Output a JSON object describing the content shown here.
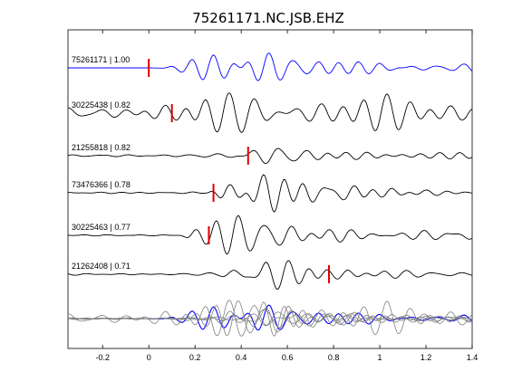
{
  "chart_data": {
    "type": "line",
    "title": "75261171.NC.JSB.EHZ",
    "xlabel": "",
    "ylabel": "",
    "xlim": [
      -0.35,
      1.4
    ],
    "xticks": [
      "-0.2",
      "0",
      "0.2",
      "0.4",
      "0.6",
      "0.8",
      "1",
      "1.2",
      "1.4"
    ],
    "xtick_values": [
      -0.2,
      0,
      0.2,
      0.4,
      0.6,
      0.8,
      1,
      1.2,
      1.4
    ],
    "grid": false,
    "legend": "none",
    "colors": {
      "reference_trace": "#0000ff",
      "traces": "#000000",
      "overlay_traces": "#808080",
      "pick_marker": "#dd0000",
      "axes": "#000000"
    },
    "series": [
      {
        "name": "75261171 | 1.00",
        "reference": true,
        "pick_time": 0.0,
        "onset": 0.0,
        "envelope": [
          [
            -0.35,
            0.03
          ],
          [
            0.0,
            0.05
          ],
          [
            0.05,
            0.45
          ],
          [
            0.15,
            0.55
          ],
          [
            0.3,
            0.75
          ],
          [
            0.45,
            1.0
          ],
          [
            0.55,
            0.9
          ],
          [
            0.7,
            0.55
          ],
          [
            0.9,
            0.35
          ],
          [
            1.1,
            0.25
          ],
          [
            1.4,
            0.2
          ]
        ]
      },
      {
        "name": "30225438 | 0.82",
        "pick_time": 0.1,
        "onset": -0.35,
        "envelope": [
          [
            -0.35,
            0.3
          ],
          [
            -0.1,
            0.35
          ],
          [
            0.0,
            0.6
          ],
          [
            0.1,
            0.75
          ],
          [
            0.2,
            0.9
          ],
          [
            0.35,
            0.8
          ],
          [
            0.5,
            1.0
          ],
          [
            0.6,
            0.9
          ],
          [
            0.8,
            0.7
          ],
          [
            1.0,
            0.6
          ],
          [
            1.2,
            0.5
          ],
          [
            1.4,
            0.45
          ]
        ]
      },
      {
        "name": "21255818 | 0.82",
        "pick_time": 0.43,
        "onset": -0.35,
        "envelope": [
          [
            -0.35,
            0.05
          ],
          [
            0.2,
            0.08
          ],
          [
            0.35,
            0.3
          ],
          [
            0.45,
            0.85
          ],
          [
            0.55,
            1.0
          ],
          [
            0.7,
            0.6
          ],
          [
            0.9,
            0.4
          ],
          [
            1.1,
            0.3
          ],
          [
            1.4,
            0.25
          ]
        ]
      },
      {
        "name": "73476366 | 0.78",
        "pick_time": 0.28,
        "onset": -0.35,
        "envelope": [
          [
            -0.35,
            0.03
          ],
          [
            0.25,
            0.05
          ],
          [
            0.32,
            0.6
          ],
          [
            0.45,
            1.0
          ],
          [
            0.6,
            0.85
          ],
          [
            0.8,
            0.55
          ],
          [
            1.0,
            0.35
          ],
          [
            1.2,
            0.15
          ],
          [
            1.4,
            0.05
          ]
        ]
      },
      {
        "name": "30225463 | 0.77",
        "pick_time": 0.26,
        "onset": -0.35,
        "envelope": [
          [
            -0.35,
            0.03
          ],
          [
            0.12,
            0.05
          ],
          [
            0.18,
            0.8
          ],
          [
            0.3,
            1.0
          ],
          [
            0.45,
            0.85
          ],
          [
            0.6,
            0.65
          ],
          [
            0.8,
            0.45
          ],
          [
            1.0,
            0.35
          ],
          [
            1.4,
            0.25
          ]
        ]
      },
      {
        "name": "21262408 | 0.71",
        "pick_time": 0.78,
        "onset": -0.35,
        "envelope": [
          [
            -0.35,
            0.05
          ],
          [
            0.3,
            0.1
          ],
          [
            0.42,
            0.5
          ],
          [
            0.5,
            1.0
          ],
          [
            0.62,
            0.75
          ],
          [
            0.8,
            0.4
          ],
          [
            1.0,
            0.25
          ],
          [
            1.4,
            0.15
          ]
        ]
      }
    ]
  }
}
